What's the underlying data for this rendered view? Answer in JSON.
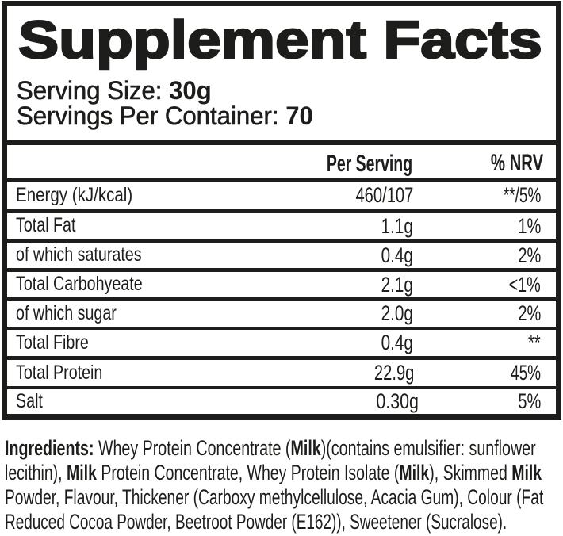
{
  "label": {
    "title": "Supplement Facts",
    "serving_size_label": "Serving Size: ",
    "serving_size_value": "30g",
    "servings_per_container_label": "Servings Per Container: ",
    "servings_per_container_value": "70"
  },
  "table": {
    "columns": {
      "per_serving": "Per Serving",
      "nrv": "% NRV"
    },
    "rows": [
      {
        "nutrient": "Energy (kJ/kcal)",
        "per_serving": "460/107",
        "nrv": "**/5%"
      },
      {
        "nutrient": "Total Fat",
        "per_serving": "1.1g",
        "nrv": "1%"
      },
      {
        "nutrient": "of which saturates",
        "per_serving": "0.4g",
        "nrv": "2%"
      },
      {
        "nutrient": "Total Carbohyeate",
        "per_serving": "2.1g",
        "nrv": "<1%"
      },
      {
        "nutrient": "of which sugar",
        "per_serving": "2.0g",
        "nrv": "2%"
      },
      {
        "nutrient": "Total Fibre",
        "per_serving": "0.4g",
        "nrv": "**"
      },
      {
        "nutrient": "Total Protein",
        "per_serving": "22.9g",
        "nrv": "45%"
      },
      {
        "nutrient": "Salt",
        "per_serving": "0.30g",
        "nrv": "5%"
      }
    ]
  },
  "ingredients": {
    "lines": [
      [
        {
          "t": "Ingredients:",
          "b": 1
        },
        {
          "t": " Whey Protein Concentrate (",
          "b": 0
        },
        {
          "t": "Milk",
          "b": 1
        },
        {
          "t": ")(contains emulsifier: sunflower",
          "b": 0
        }
      ],
      [
        {
          "t": "lecithin), ",
          "b": 0
        },
        {
          "t": "Milk",
          "b": 1
        },
        {
          "t": " Protein Concentrate, Whey Protein Isolate (",
          "b": 0
        },
        {
          "t": "Milk",
          "b": 1
        },
        {
          "t": "), Skimmed ",
          "b": 0
        },
        {
          "t": "Milk",
          "b": 1
        }
      ],
      [
        {
          "t": "Powder, Flavour, Thickener (Carboxy methylcellulose, Acacia Gum), Colour (Fat",
          "b": 0
        }
      ],
      [
        {
          "t": "Reduced Cocoa Powder, Beetroot Powder (E162)), Sweetener (Sucralose).",
          "b": 0
        }
      ]
    ]
  },
  "colors": {
    "ink": "#1d1d1b",
    "background": "#ffffff"
  }
}
